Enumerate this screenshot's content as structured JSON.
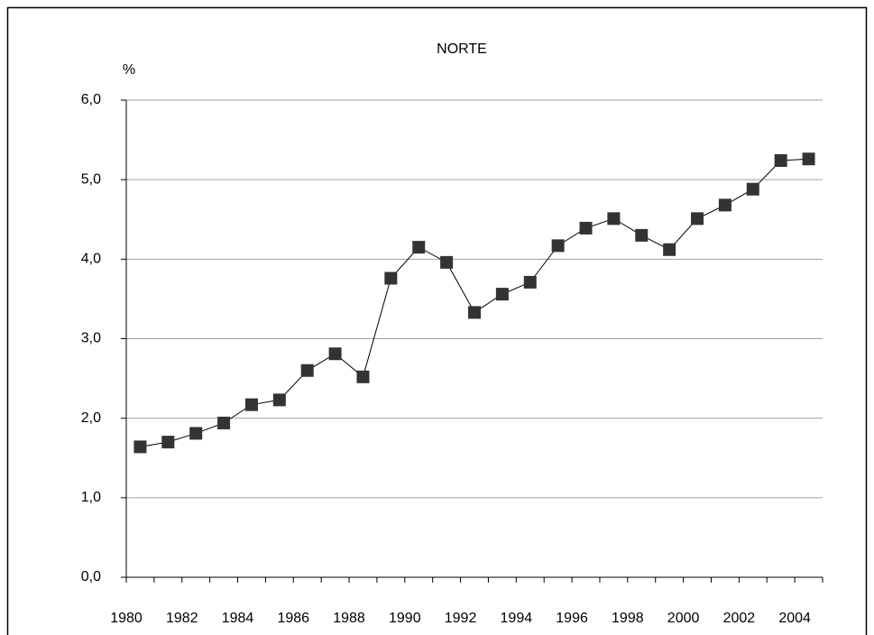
{
  "chart_data": {
    "type": "line",
    "title": "NORTE",
    "y_label": "%",
    "categories": [
      "1980",
      null,
      "1982",
      null,
      "1984",
      null,
      "1986",
      null,
      "1988",
      null,
      "1990",
      null,
      "1992",
      null,
      "1994",
      null,
      "1996",
      null,
      "1998",
      null,
      "2000",
      null,
      "2002",
      null,
      "2004"
    ],
    "values": [
      1.64,
      1.7,
      1.81,
      1.94,
      2.17,
      2.23,
      2.6,
      2.81,
      2.52,
      3.76,
      4.15,
      3.96,
      3.33,
      3.56,
      3.71,
      4.17,
      4.39,
      4.51,
      4.3,
      4.12,
      4.51,
      4.68,
      4.88,
      5.24,
      5.26
    ],
    "color": "#333333",
    "ylim": [
      0,
      6
    ],
    "yticks": [
      {
        "value": 0,
        "label": "0,0"
      },
      {
        "value": 1,
        "label": "1,0"
      },
      {
        "value": 2,
        "label": "2,0"
      },
      {
        "value": 3,
        "label": "3,0"
      },
      {
        "value": 4,
        "label": "4,0"
      },
      {
        "value": 5,
        "label": "5,0"
      },
      {
        "value": 6,
        "label": "6,0"
      }
    ],
    "grid": true
  }
}
